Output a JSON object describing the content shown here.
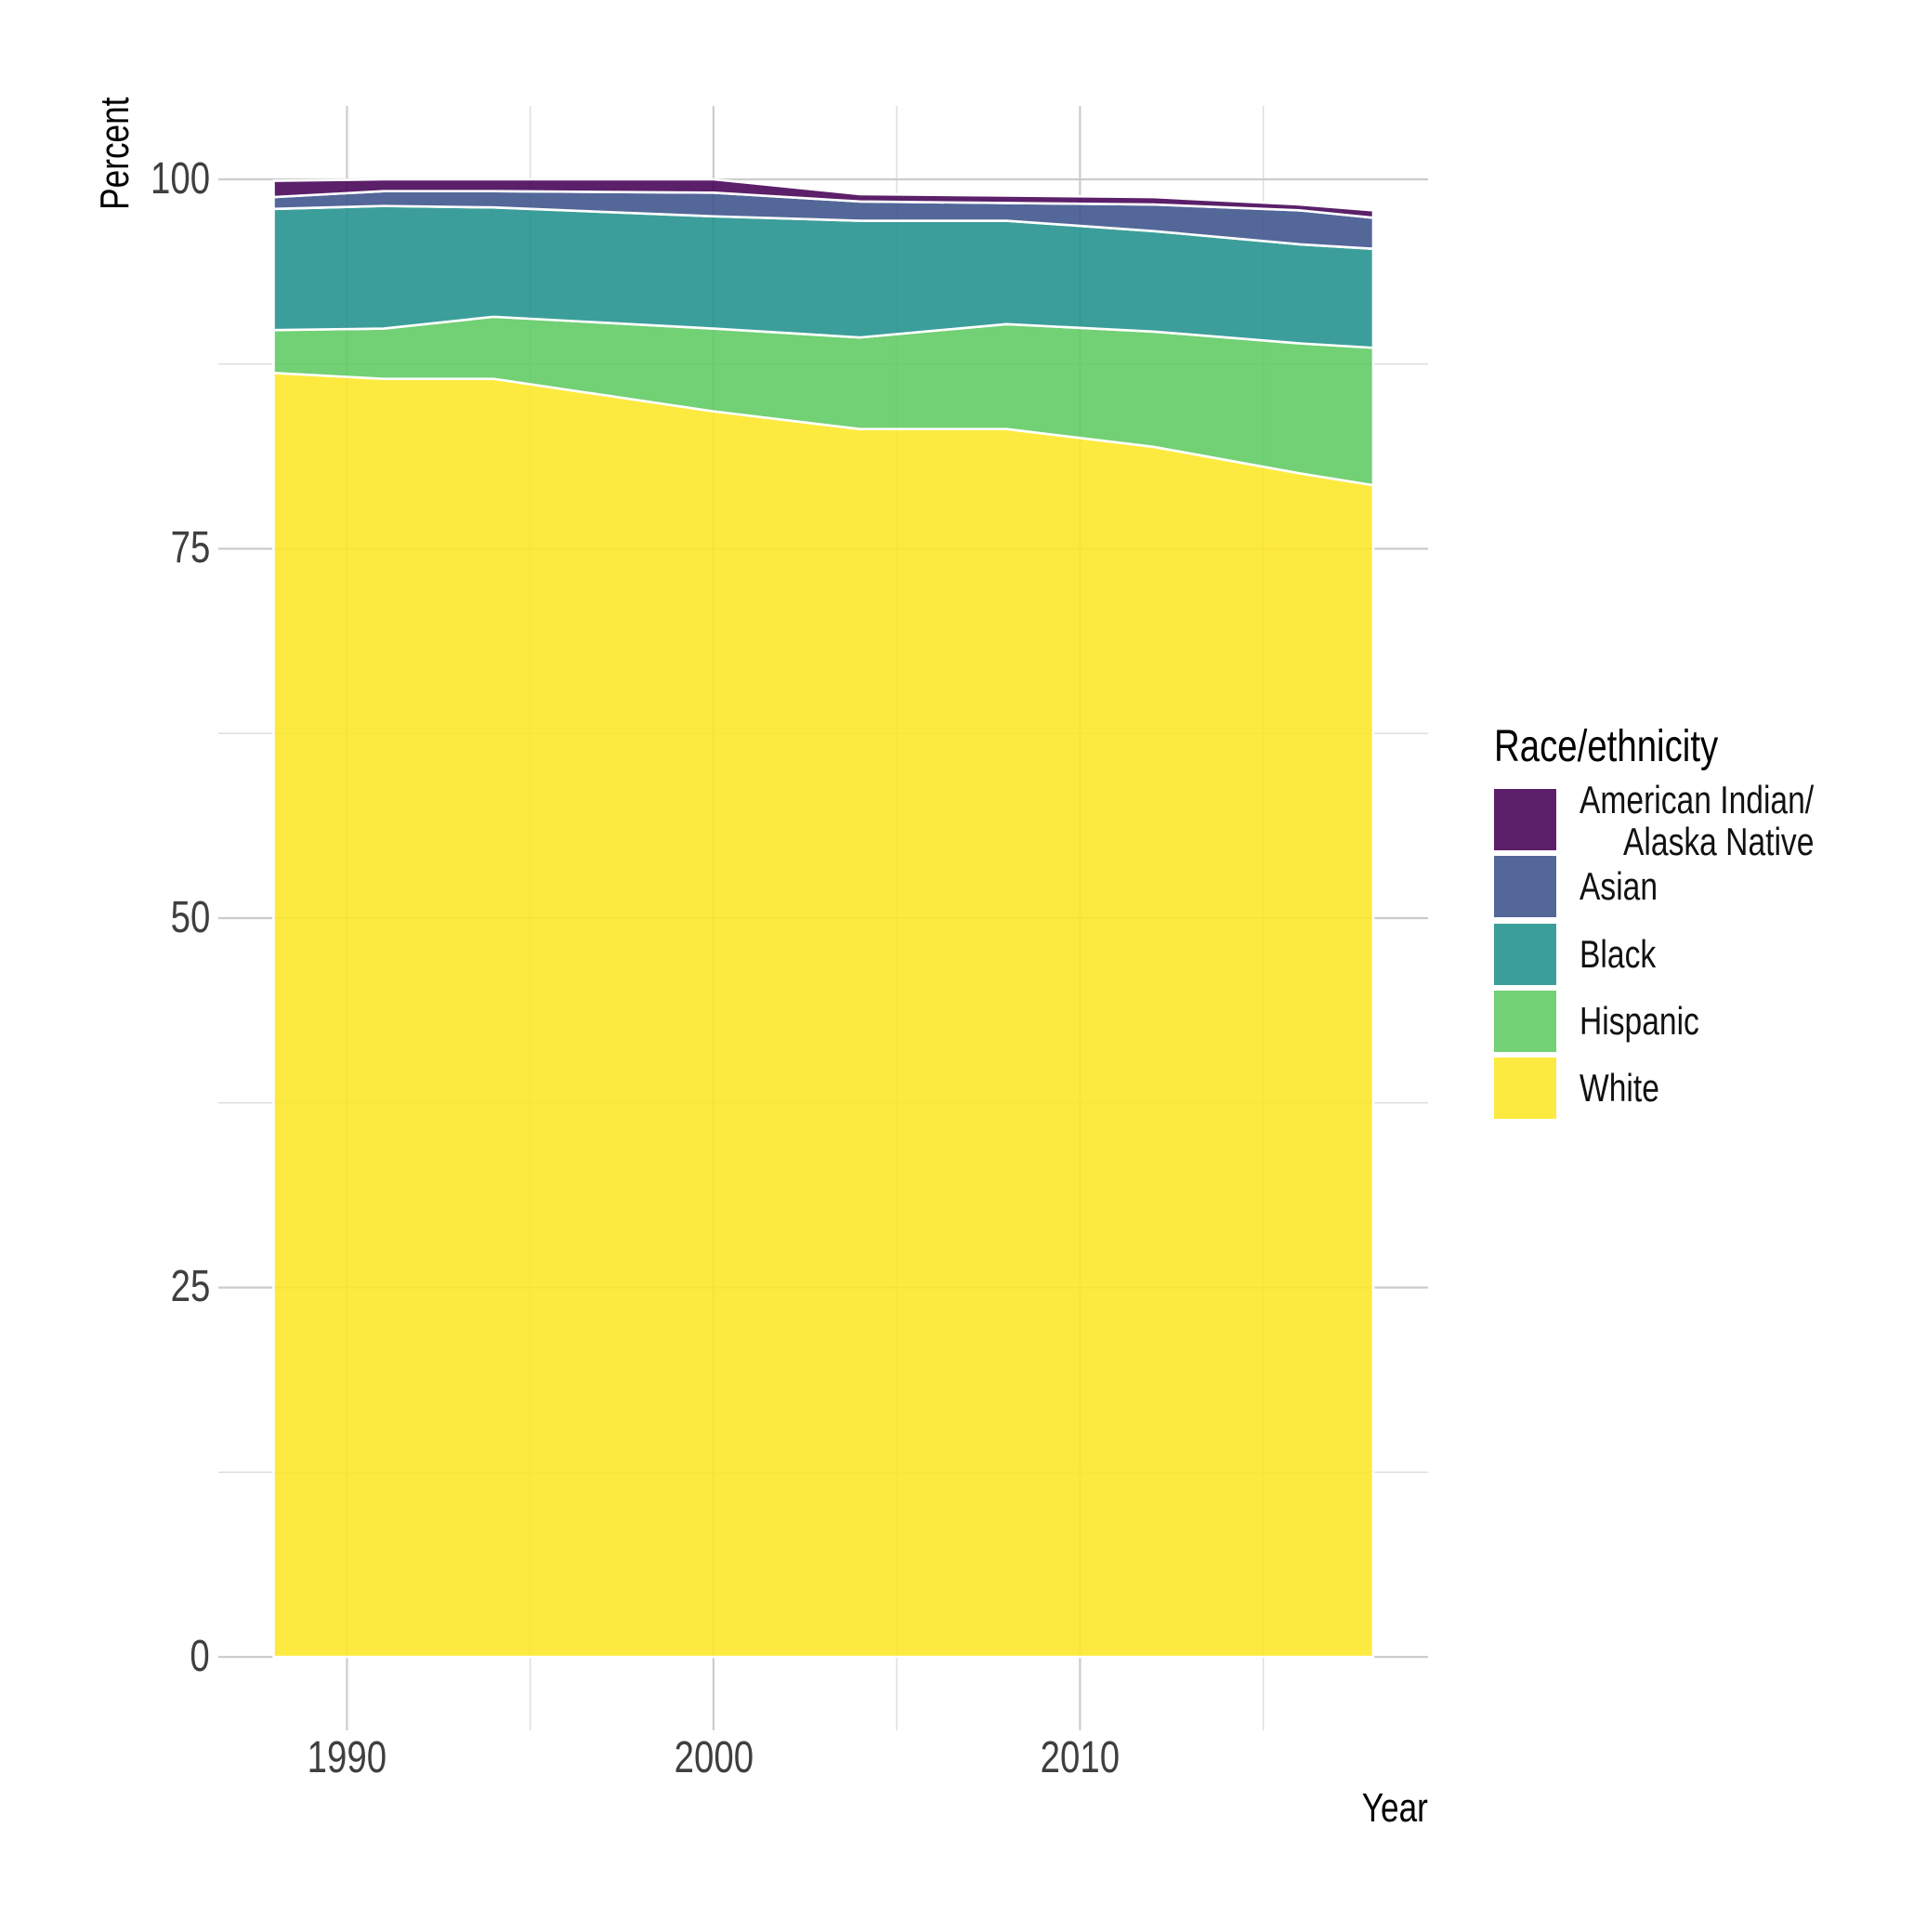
{
  "chart_data": {
    "type": "area",
    "stacked": true,
    "xlabel": "Year",
    "ylabel": "Percent",
    "x": [
      1988,
      1991,
      1994,
      2000,
      2004,
      2008,
      2012,
      2016,
      2018
    ],
    "series": [
      {
        "name": "American Indian/Alaska Native",
        "label_lines": [
          "American Indian/",
          "Alaska Native"
        ],
        "color": "rgba(68,1,84,0.88)",
        "values": [
          1.1,
          0.8,
          0.8,
          0.9,
          0.5,
          0.5,
          0.5,
          0.4,
          0.5
        ]
      },
      {
        "name": "Asian",
        "label_lines": [
          "Asian"
        ],
        "color": "rgba(59,82,139,0.88)",
        "values": [
          0.8,
          1.0,
          1.1,
          1.6,
          1.3,
          1.2,
          1.8,
          2.3,
          2.1
        ]
      },
      {
        "name": "Black",
        "label_lines": [
          "Black"
        ],
        "color": "rgba(33,145,140,0.88)",
        "values": [
          8.2,
          8.3,
          7.4,
          7.6,
          7.9,
          7.0,
          6.8,
          6.7,
          6.7
        ]
      },
      {
        "name": "Hispanic",
        "label_lines": [
          "Hispanic"
        ],
        "color": "rgba(94,201,98,0.88)",
        "values": [
          2.9,
          3.4,
          4.2,
          5.6,
          6.2,
          7.1,
          7.8,
          8.8,
          9.3
        ]
      },
      {
        "name": "White",
        "label_lines": [
          "White"
        ],
        "color": "rgba(253,231,37,0.88)",
        "values": [
          86.9,
          86.5,
          86.5,
          84.3,
          83.1,
          83.1,
          81.9,
          80.1,
          79.3
        ]
      }
    ],
    "stack_order_bottom_to_top": [
      "White",
      "Hispanic",
      "Black",
      "Asian",
      "American Indian/Alaska Native"
    ],
    "xlim": [
      1988,
      2018
    ],
    "ylim": [
      0,
      100
    ],
    "x_ticks": {
      "values": [
        1990,
        2000,
        2010
      ],
      "labels": [
        "1990",
        "2000",
        "2010"
      ],
      "minor": [
        1995,
        2005,
        2015
      ]
    },
    "y_ticks": {
      "values": [
        100,
        75,
        50,
        25,
        0
      ],
      "labels": [
        "100",
        "75",
        "50",
        "25",
        "0"
      ],
      "minor": [
        12.5,
        37.5,
        62.5,
        87.5
      ]
    },
    "legend": {
      "title": "Race/ethnicity",
      "position": "right"
    },
    "grid": true,
    "colors": {
      "background": "#FFFFFF",
      "grid_major": "#CCCCCC",
      "grid_minor": "#DFDFDF",
      "area_border": "#FFFFFF",
      "tick_text": "#3F3F3F",
      "title_text": "#000000"
    }
  }
}
